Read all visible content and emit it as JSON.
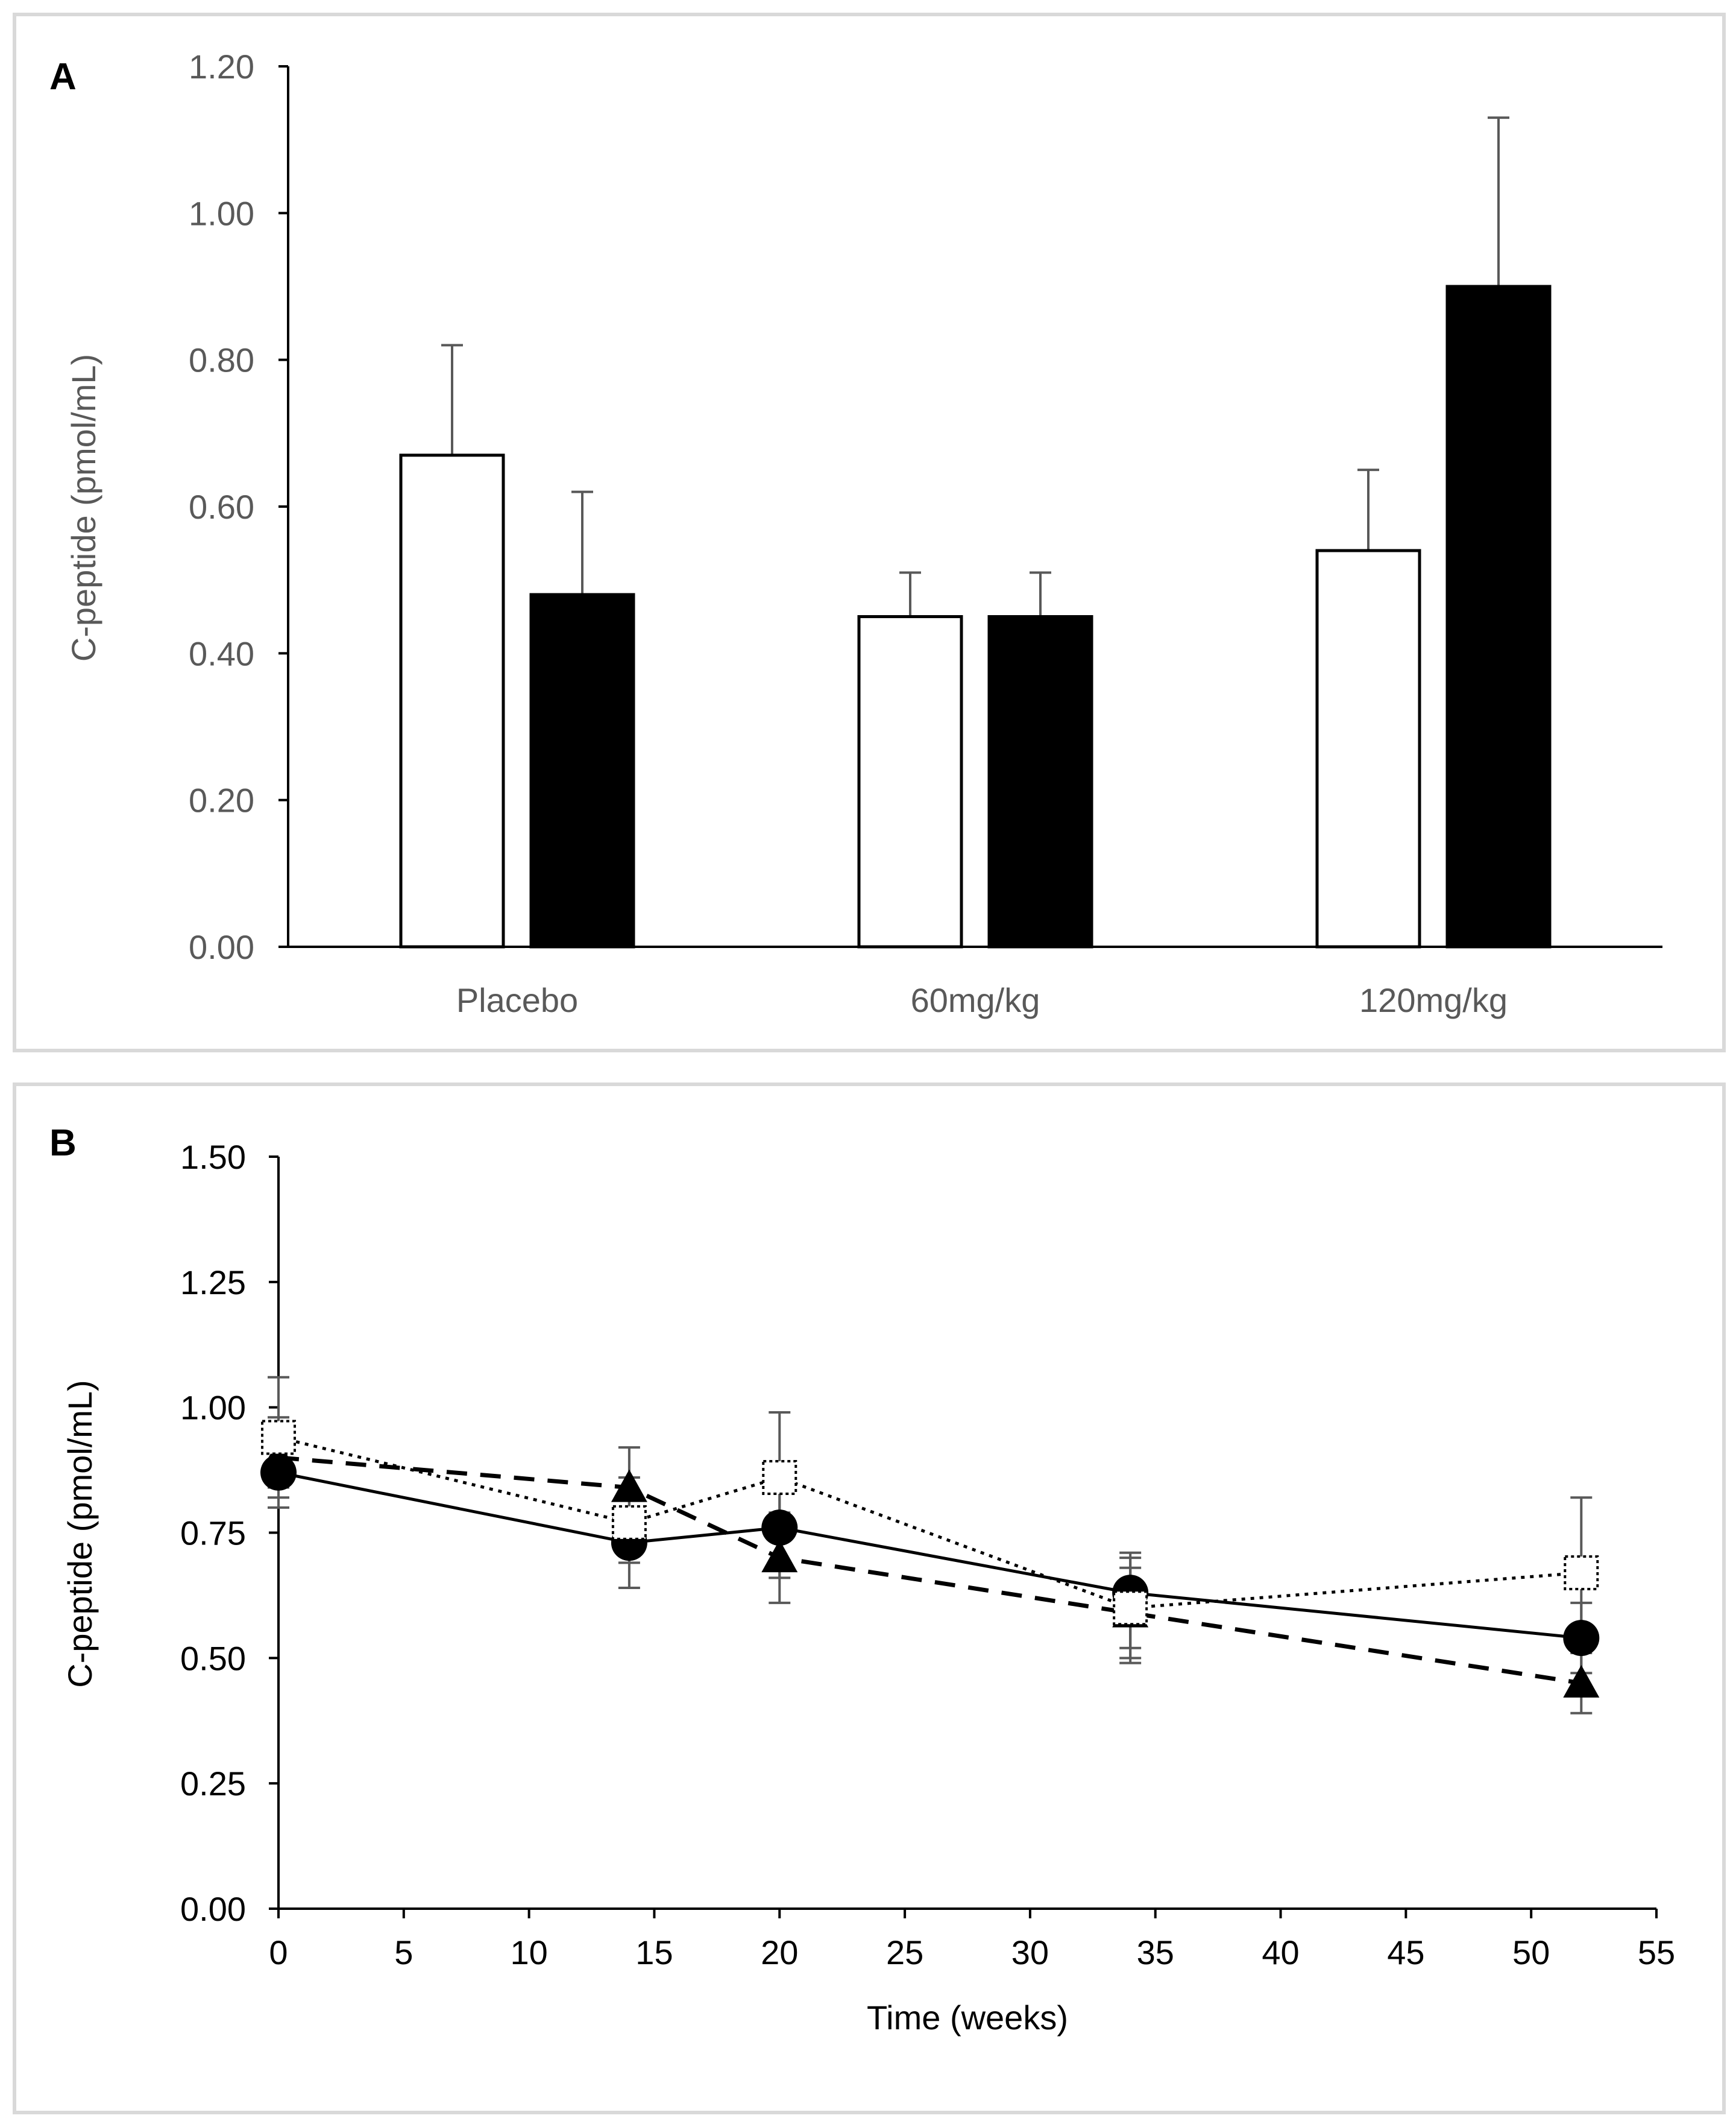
{
  "chart_data": [
    {
      "panel_label": "A",
      "type": "bar",
      "categories": [
        "Placebo",
        "60mg/kg",
        "120mg/kg"
      ],
      "series": [
        {
          "name": "open bars",
          "fill": "#ffffff",
          "values": [
            0.67,
            0.45,
            0.54
          ],
          "error_upper": [
            0.82,
            0.51,
            0.65
          ]
        },
        {
          "name": "filled bars",
          "fill": "#000000",
          "values": [
            0.48,
            0.45,
            0.9
          ],
          "error_upper": [
            0.62,
            0.51,
            1.13
          ]
        }
      ],
      "title": "",
      "xlabel": "",
      "ylabel": "C-peptide (pmol/mL)",
      "ylim": [
        0,
        1.2
      ],
      "yticks": [
        "0.00",
        "0.20",
        "0.40",
        "0.60",
        "0.80",
        "1.00",
        "1.20"
      ],
      "grid": false,
      "axis_text_color": "#595959"
    },
    {
      "panel_label": "B",
      "type": "line",
      "xlabel": "Time (weeks)",
      "ylabel": "C-peptide (pmol/mL)",
      "xlim": [
        0,
        55
      ],
      "ylim": [
        0,
        1.5
      ],
      "xticks": [
        "0",
        "5",
        "10",
        "15",
        "20",
        "25",
        "30",
        "35",
        "40",
        "45",
        "50",
        "55"
      ],
      "yticks": [
        "0.00",
        "0.25",
        "0.50",
        "0.75",
        "1.00",
        "1.25",
        "1.50"
      ],
      "grid": false,
      "axis_text_color": "#000000",
      "series": [
        {
          "name": "solid line, filled circles",
          "line_style": "solid",
          "marker": "circle",
          "x": [
            0,
            14,
            20,
            34,
            52
          ],
          "y": [
            0.87,
            0.73,
            0.76,
            0.63,
            0.54
          ],
          "error_low": [
            0.8,
            0.64,
            0.66,
            0.49,
            0.47
          ],
          "error_high": [
            0.94,
            0.82,
            0.86,
            0.71,
            0.61
          ]
        },
        {
          "name": "dashed line, filled triangles",
          "line_style": "dashed",
          "marker": "triangle",
          "x": [
            0,
            14,
            20,
            34,
            52
          ],
          "y": [
            0.9,
            0.84,
            0.7,
            0.59,
            0.45
          ],
          "error_low": [
            0.82,
            0.76,
            0.61,
            0.5,
            0.39
          ],
          "error_high": [
            0.98,
            0.92,
            0.79,
            0.68,
            0.51
          ]
        },
        {
          "name": "dotted line, open squares",
          "line_style": "dotted",
          "marker": "square",
          "x": [
            0,
            14,
            20,
            34,
            52
          ],
          "y": [
            0.94,
            0.77,
            0.86,
            0.6,
            0.67
          ],
          "error_low": [
            0.84,
            0.69,
            0.75,
            0.52,
            0.56
          ],
          "error_high": [
            1.06,
            0.86,
            0.99,
            0.7,
            0.82
          ]
        }
      ]
    }
  ]
}
